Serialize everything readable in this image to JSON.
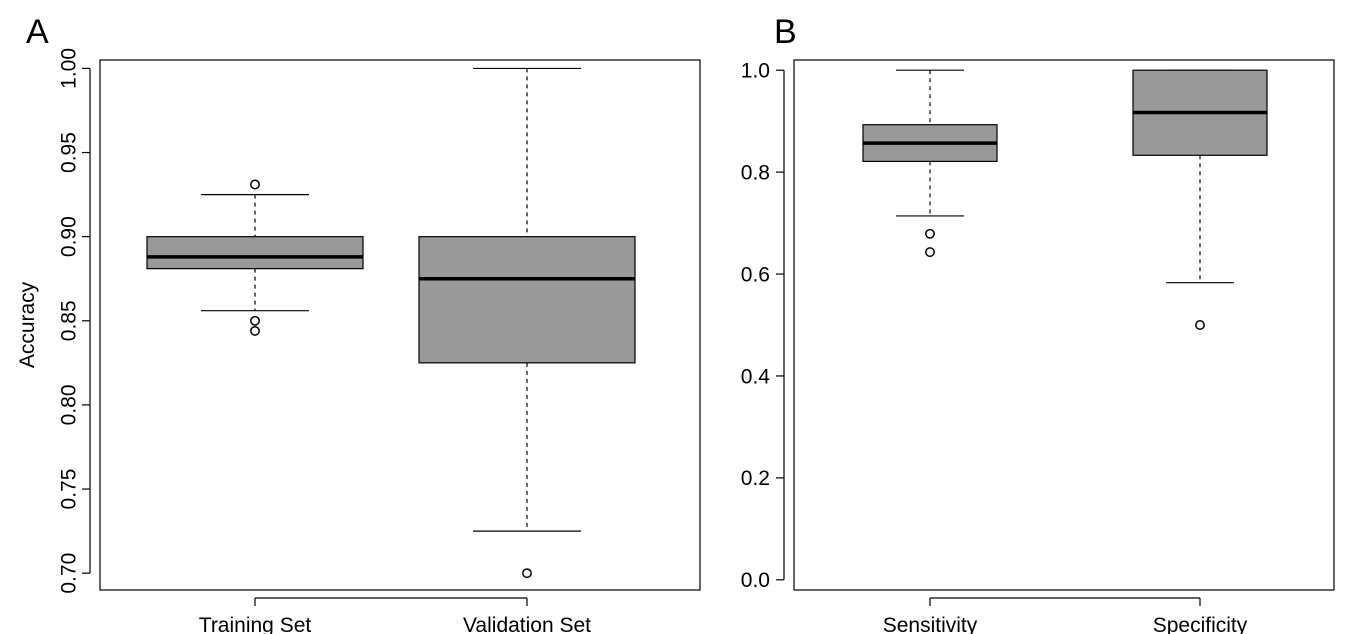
{
  "chart_data": [
    {
      "type": "boxplot",
      "panel_label": "A",
      "title": "",
      "xlabel": "",
      "ylabel": "Accuracy",
      "ylim": [
        0.69,
        1.005
      ],
      "yticks": [
        0.7,
        0.75,
        0.8,
        0.85,
        0.9,
        0.95,
        1.0
      ],
      "ytick_labels": [
        "0.70",
        "0.75",
        "0.80",
        "0.85",
        "0.90",
        "0.95",
        "1.00"
      ],
      "y_tick_rotation": "vertical",
      "grid": false,
      "box_color": "#999999",
      "categories": [
        "Training Set",
        "Validation Set"
      ],
      "boxes": [
        {
          "label": "Training Set",
          "whisker_low": 0.856,
          "q1": 0.881,
          "median": 0.888,
          "q3": 0.9,
          "whisker_high": 0.925,
          "outliers": [
            0.931,
            0.85,
            0.844
          ]
        },
        {
          "label": "Validation Set",
          "whisker_low": 0.725,
          "q1": 0.825,
          "median": 0.875,
          "q3": 0.9,
          "whisker_high": 1.0,
          "outliers": [
            0.7
          ]
        }
      ]
    },
    {
      "type": "boxplot",
      "panel_label": "B",
      "title": "",
      "xlabel": "",
      "ylabel": "",
      "ylim": [
        -0.02,
        1.02
      ],
      "yticks": [
        0.0,
        0.2,
        0.4,
        0.6,
        0.8,
        1.0
      ],
      "ytick_labels": [
        "0.0",
        "0.2",
        "0.4",
        "0.6",
        "0.8",
        "1.0"
      ],
      "y_tick_rotation": "horizontal",
      "grid": false,
      "box_color": "#999999",
      "categories": [
        "Sensitivity",
        "Specificity"
      ],
      "boxes": [
        {
          "label": "Sensitivity",
          "whisker_low": 0.714,
          "q1": 0.821,
          "median": 0.857,
          "q3": 0.893,
          "whisker_high": 1.0,
          "outliers": [
            0.679,
            0.643
          ]
        },
        {
          "label": "Specificity",
          "whisker_low": 0.583,
          "q1": 0.833,
          "median": 0.917,
          "q3": 1.0,
          "whisker_high": 1.0,
          "outliers": [
            0.5
          ]
        }
      ]
    }
  ]
}
